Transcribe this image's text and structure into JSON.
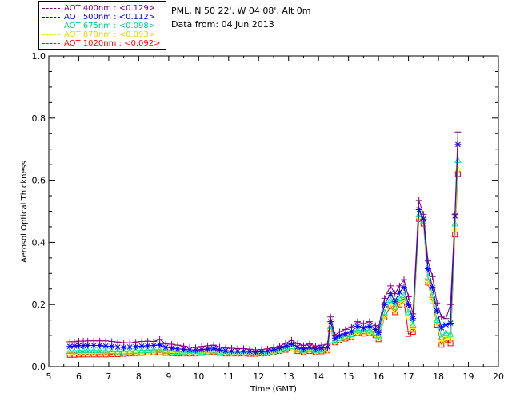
{
  "header": {
    "station": "PML, N 50 22', W 04 08', Alt 0m",
    "date_text": "Data from: 04 Jun 2013"
  },
  "chart_data": {
    "type": "line",
    "title": "",
    "xlabel": "Time (GMT)",
    "ylabel": "Aerosol Optical Thickness",
    "xlim": [
      5,
      20
    ],
    "ylim": [
      0.0,
      1.0
    ],
    "xticks": [
      5,
      6,
      7,
      8,
      9,
      10,
      11,
      12,
      13,
      14,
      15,
      16,
      17,
      18,
      19,
      20
    ],
    "yticks": [
      "0.0",
      "0.2",
      "0.4",
      "0.6",
      "0.8",
      "1.0"
    ],
    "grid": false,
    "legend_position": "top-left",
    "x": [
      5.7,
      5.85,
      6.0,
      6.15,
      6.3,
      6.5,
      6.7,
      6.9,
      7.1,
      7.3,
      7.5,
      7.7,
      7.9,
      8.1,
      8.3,
      8.5,
      8.7,
      8.9,
      9.1,
      9.3,
      9.5,
      9.7,
      9.9,
      10.1,
      10.3,
      10.5,
      10.7,
      10.9,
      11.1,
      11.3,
      11.5,
      11.7,
      11.9,
      12.1,
      12.3,
      12.5,
      12.7,
      12.9,
      13.1,
      13.3,
      13.5,
      13.7,
      13.9,
      14.1,
      14.3,
      14.4,
      14.55,
      14.7,
      14.9,
      15.1,
      15.3,
      15.5,
      15.7,
      15.9,
      16.0,
      16.2,
      16.4,
      16.55,
      16.7,
      16.85,
      17.0,
      17.15,
      17.35,
      17.5,
      17.65,
      17.8,
      17.95,
      18.1,
      18.25,
      18.4,
      18.55,
      18.65
    ],
    "series": [
      {
        "name": "AOT  400nm : <0.129>",
        "color": "#800080",
        "marker": "plus",
        "values": [
          0.08,
          0.08,
          0.082,
          0.082,
          0.083,
          0.083,
          0.083,
          0.083,
          0.081,
          0.079,
          0.077,
          0.076,
          0.079,
          0.081,
          0.082,
          0.081,
          0.088,
          0.073,
          0.072,
          0.069,
          0.066,
          0.063,
          0.061,
          0.065,
          0.067,
          0.069,
          0.063,
          0.06,
          0.059,
          0.058,
          0.058,
          0.056,
          0.054,
          0.055,
          0.057,
          0.061,
          0.066,
          0.075,
          0.085,
          0.074,
          0.068,
          0.073,
          0.066,
          0.069,
          0.072,
          0.16,
          0.102,
          0.112,
          0.12,
          0.128,
          0.145,
          0.138,
          0.145,
          0.132,
          0.125,
          0.22,
          0.26,
          0.235,
          0.26,
          0.28,
          0.225,
          0.17,
          0.535,
          0.49,
          0.34,
          0.29,
          0.205,
          0.16,
          0.155,
          0.2,
          0.49,
          0.755
        ]
      },
      {
        "name": "AOT  500nm : <0.112>",
        "color": "#0000ff",
        "marker": "star",
        "values": [
          0.065,
          0.066,
          0.068,
          0.067,
          0.068,
          0.068,
          0.068,
          0.066,
          0.065,
          0.063,
          0.062,
          0.063,
          0.064,
          0.066,
          0.067,
          0.068,
          0.07,
          0.062,
          0.06,
          0.057,
          0.056,
          0.054,
          0.053,
          0.055,
          0.057,
          0.059,
          0.054,
          0.051,
          0.05,
          0.05,
          0.05,
          0.049,
          0.047,
          0.048,
          0.05,
          0.054,
          0.06,
          0.066,
          0.073,
          0.063,
          0.058,
          0.063,
          0.058,
          0.06,
          0.063,
          0.145,
          0.092,
          0.1,
          0.106,
          0.113,
          0.13,
          0.125,
          0.13,
          0.12,
          0.11,
          0.2,
          0.235,
          0.21,
          0.24,
          0.255,
          0.2,
          0.155,
          0.505,
          0.475,
          0.315,
          0.255,
          0.18,
          0.125,
          0.135,
          0.14,
          0.485,
          0.715
        ]
      },
      {
        "name": "AOT  675nm : <0.098>",
        "color": "#00e5a0",
        "marker": "triangle",
        "values": [
          0.05,
          0.05,
          0.052,
          0.052,
          0.052,
          0.052,
          0.052,
          0.051,
          0.05,
          0.049,
          0.049,
          0.05,
          0.051,
          0.052,
          0.053,
          0.054,
          0.055,
          0.05,
          0.049,
          0.047,
          0.046,
          0.045,
          0.045,
          0.047,
          0.049,
          0.051,
          0.047,
          0.045,
          0.045,
          0.045,
          0.045,
          0.044,
          0.043,
          0.044,
          0.046,
          0.049,
          0.054,
          0.059,
          0.065,
          0.056,
          0.052,
          0.056,
          0.052,
          0.054,
          0.057,
          0.13,
          0.085,
          0.092,
          0.097,
          0.104,
          0.118,
          0.115,
          0.118,
          0.11,
          0.1,
          0.175,
          0.215,
          0.192,
          0.22,
          0.23,
          0.175,
          0.135,
          0.49,
          0.47,
          0.29,
          0.23,
          0.15,
          0.095,
          0.11,
          0.105,
          0.46,
          0.665
        ]
      },
      {
        "name": "AOT  870nm : <0.093>",
        "color": "#ffff00",
        "marker": "diamond",
        "values": [
          0.042,
          0.042,
          0.043,
          0.043,
          0.043,
          0.043,
          0.043,
          0.043,
          0.043,
          0.043,
          0.043,
          0.044,
          0.045,
          0.046,
          0.047,
          0.048,
          0.048,
          0.046,
          0.045,
          0.044,
          0.043,
          0.043,
          0.043,
          0.045,
          0.047,
          0.048,
          0.045,
          0.043,
          0.043,
          0.043,
          0.043,
          0.042,
          0.042,
          0.043,
          0.044,
          0.047,
          0.052,
          0.056,
          0.06,
          0.052,
          0.049,
          0.052,
          0.049,
          0.051,
          0.054,
          0.122,
          0.08,
          0.088,
          0.092,
          0.098,
          0.11,
          0.108,
          0.11,
          0.103,
          0.092,
          0.162,
          0.2,
          0.18,
          0.205,
          0.215,
          0.16,
          0.12,
          0.48,
          0.465,
          0.275,
          0.215,
          0.14,
          0.078,
          0.092,
          0.09,
          0.44,
          0.635
        ]
      },
      {
        "name": "AOT 1020nm : <0.092>",
        "color": "#ff0000",
        "marker": "square",
        "values": [
          0.038,
          0.038,
          0.039,
          0.039,
          0.039,
          0.039,
          0.039,
          0.039,
          0.04,
          0.04,
          0.041,
          0.042,
          0.043,
          0.044,
          0.045,
          0.046,
          0.046,
          0.044,
          0.043,
          0.042,
          0.042,
          0.042,
          0.042,
          0.044,
          0.046,
          0.047,
          0.044,
          0.042,
          0.042,
          0.042,
          0.042,
          0.041,
          0.041,
          0.042,
          0.043,
          0.046,
          0.05,
          0.054,
          0.058,
          0.05,
          0.047,
          0.05,
          0.047,
          0.049,
          0.052,
          0.12,
          0.078,
          0.086,
          0.09,
          0.096,
          0.108,
          0.106,
          0.108,
          0.101,
          0.088,
          0.158,
          0.195,
          0.175,
          0.2,
          0.21,
          0.105,
          0.112,
          0.475,
          0.46,
          0.27,
          0.21,
          0.135,
          0.07,
          0.085,
          0.075,
          0.425,
          0.62
        ]
      }
    ]
  }
}
